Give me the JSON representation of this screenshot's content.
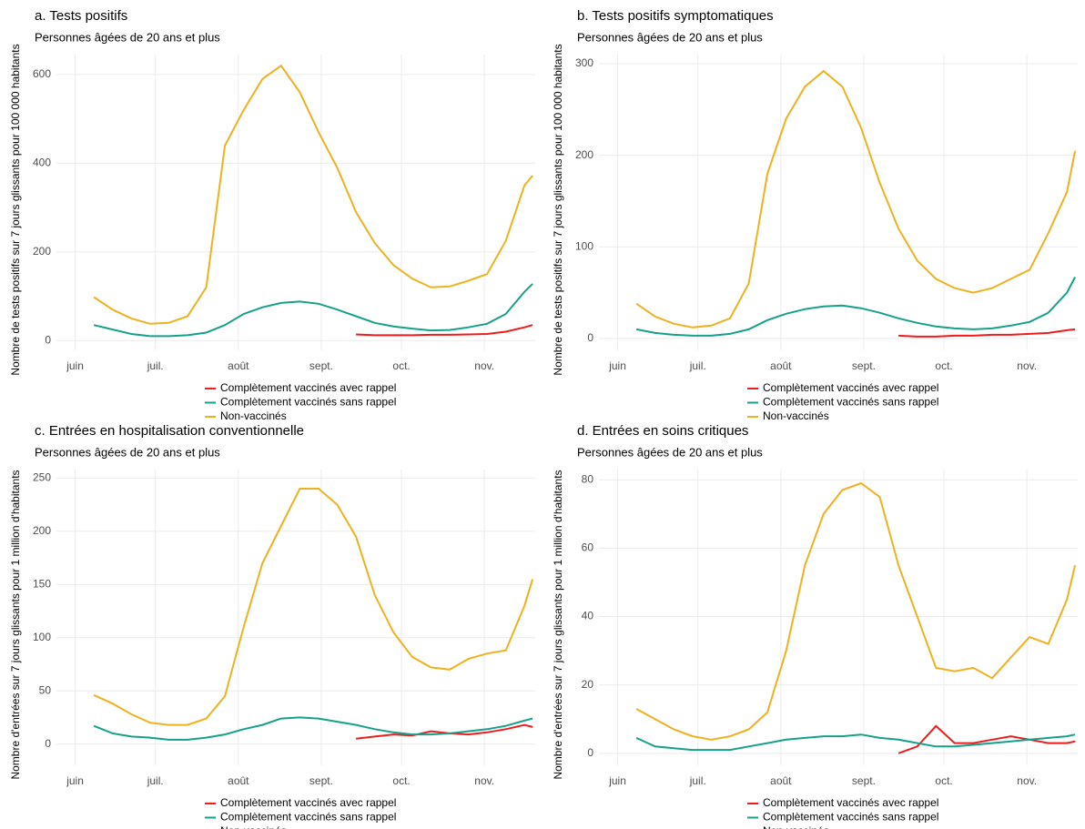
{
  "chart_data": [
    {
      "type": "line",
      "title": "a. Tests positifs",
      "subtitle": "Personnes âgées de 20 ans et plus",
      "y_label": "Nombre de tests positifs sur 7 jours glissants pour 100 000 habitants",
      "x": [
        7,
        14,
        21,
        28,
        35,
        42,
        49,
        56,
        63,
        70,
        77,
        84,
        91,
        98,
        105,
        112,
        119,
        126,
        133,
        140,
        147,
        154,
        161,
        168,
        171
      ],
      "xlim": [
        -7,
        172
      ],
      "xticks": [
        {
          "value": 0,
          "label": "juin"
        },
        {
          "value": 30,
          "label": "juil."
        },
        {
          "value": 61,
          "label": "août"
        },
        {
          "value": 92,
          "label": "sept."
        },
        {
          "value": 122,
          "label": "oct."
        },
        {
          "value": 153,
          "label": "nov."
        }
      ],
      "ylim": [
        -22,
        645
      ],
      "yticks": [
        0,
        200,
        400,
        600
      ],
      "grid": true,
      "legend": "bottom",
      "series": [
        {
          "name": "Complètement vaccinés avec rappel",
          "color": "#ee1c1c",
          "values": [
            null,
            null,
            null,
            null,
            null,
            null,
            null,
            null,
            null,
            null,
            null,
            null,
            null,
            null,
            14,
            12,
            12,
            12,
            13,
            13,
            14,
            15,
            20,
            30,
            35
          ]
        },
        {
          "name": "Complètement vaccinés sans rappel",
          "color": "#16a08b",
          "values": [
            35,
            25,
            15,
            10,
            10,
            12,
            18,
            35,
            60,
            75,
            85,
            88,
            83,
            70,
            55,
            40,
            32,
            27,
            23,
            24,
            30,
            38,
            60,
            110,
            128
          ]
        },
        {
          "name": "Non-vaccinés",
          "color": "#efb11f",
          "values": [
            98,
            70,
            50,
            38,
            40,
            55,
            120,
            440,
            520,
            590,
            620,
            560,
            470,
            390,
            290,
            220,
            170,
            140,
            120,
            122,
            135,
            150,
            225,
            350,
            372
          ]
        }
      ]
    },
    {
      "type": "line",
      "title": "b. Tests positifs symptomatiques",
      "subtitle": "Personnes âgées de 20 ans et plus",
      "y_label": "Nombre de tests positifs sur 7 jours glissants pour 100 000 habitants",
      "x": [
        7,
        14,
        21,
        28,
        35,
        42,
        49,
        56,
        63,
        70,
        77,
        84,
        91,
        98,
        105,
        112,
        119,
        126,
        133,
        140,
        147,
        154,
        161,
        168,
        171
      ],
      "xlim": [
        -7,
        172
      ],
      "xticks": [
        {
          "value": 0,
          "label": "juin"
        },
        {
          "value": 30,
          "label": "juil."
        },
        {
          "value": 61,
          "label": "août"
        },
        {
          "value": 92,
          "label": "sept."
        },
        {
          "value": 122,
          "label": "oct."
        },
        {
          "value": 153,
          "label": "nov."
        }
      ],
      "ylim": [
        -13,
        310
      ],
      "yticks": [
        0,
        100,
        200,
        300
      ],
      "grid": true,
      "legend": "bottom",
      "series": [
        {
          "name": "Complètement vaccinés avec rappel",
          "color": "#ee1c1c",
          "values": [
            null,
            null,
            null,
            null,
            null,
            null,
            null,
            null,
            null,
            null,
            null,
            null,
            null,
            null,
            3,
            2,
            2,
            3,
            3,
            4,
            4,
            5,
            6,
            9,
            10
          ]
        },
        {
          "name": "Complètement vaccinés sans rappel",
          "color": "#16a08b",
          "values": [
            10,
            6,
            4,
            3,
            3,
            5,
            10,
            20,
            27,
            32,
            35,
            36,
            33,
            28,
            22,
            17,
            13,
            11,
            10,
            11,
            14,
            18,
            28,
            50,
            67
          ]
        },
        {
          "name": "Non-vaccinés",
          "color": "#efb11f",
          "values": [
            38,
            24,
            16,
            12,
            14,
            22,
            60,
            180,
            240,
            275,
            292,
            275,
            230,
            170,
            120,
            85,
            65,
            55,
            50,
            55,
            65,
            75,
            115,
            160,
            205
          ]
        }
      ]
    },
    {
      "type": "line",
      "title": "c. Entrées en hospitalisation conventionnelle",
      "subtitle": "Personnes âgées de 20 ans et plus",
      "y_label": "Nombre d'entrées sur 7 jours glissants pour 1 million d'habitants",
      "x": [
        7,
        14,
        21,
        28,
        35,
        42,
        49,
        56,
        63,
        70,
        77,
        84,
        91,
        98,
        105,
        112,
        119,
        126,
        133,
        140,
        147,
        154,
        161,
        168,
        171
      ],
      "xlim": [
        -7,
        172
      ],
      "xticks": [
        {
          "value": 0,
          "label": "juin"
        },
        {
          "value": 30,
          "label": "juil."
        },
        {
          "value": 61,
          "label": "août"
        },
        {
          "value": 92,
          "label": "sept."
        },
        {
          "value": 122,
          "label": "oct."
        },
        {
          "value": 153,
          "label": "nov."
        }
      ],
      "ylim": [
        -20,
        258
      ],
      "yticks": [
        0,
        50,
        100,
        150,
        200,
        250
      ],
      "grid": true,
      "legend": "bottom",
      "series": [
        {
          "name": "Complètement vaccinés avec rappel",
          "color": "#ee1c1c",
          "values": [
            null,
            null,
            null,
            null,
            null,
            null,
            null,
            null,
            null,
            null,
            null,
            null,
            null,
            null,
            5,
            7,
            9,
            8,
            12,
            10,
            9,
            11,
            14,
            18,
            16
          ]
        },
        {
          "name": "Complètement vaccinés sans rappel",
          "color": "#16a08b",
          "values": [
            17,
            10,
            7,
            6,
            4,
            4,
            6,
            9,
            14,
            18,
            24,
            25,
            24,
            21,
            18,
            14,
            11,
            9,
            9,
            10,
            12,
            14,
            17,
            22,
            24
          ]
        },
        {
          "name": "Non-vaccinés",
          "color": "#efb11f",
          "values": [
            46,
            38,
            28,
            20,
            18,
            18,
            24,
            45,
            110,
            170,
            205,
            240,
            240,
            225,
            195,
            140,
            105,
            82,
            72,
            70,
            80,
            85,
            88,
            130,
            155
          ]
        }
      ]
    },
    {
      "type": "line",
      "title": "d. Entrées en soins critiques",
      "subtitle": "Personnes âgées de 20 ans et plus",
      "y_label": "Nombre d'entrées sur 7 jours glissants pour 1 million d'habitants",
      "x": [
        7,
        14,
        21,
        28,
        35,
        42,
        49,
        56,
        63,
        70,
        77,
        84,
        91,
        98,
        105,
        112,
        119,
        126,
        133,
        140,
        147,
        154,
        161,
        168,
        171
      ],
      "xlim": [
        -7,
        172
      ],
      "xticks": [
        {
          "value": 0,
          "label": "juin"
        },
        {
          "value": 30,
          "label": "juil."
        },
        {
          "value": 61,
          "label": "août"
        },
        {
          "value": 92,
          "label": "sept."
        },
        {
          "value": 122,
          "label": "oct."
        },
        {
          "value": 153,
          "label": "nov."
        }
      ],
      "ylim": [
        -3.5,
        83
      ],
      "yticks": [
        0,
        20,
        40,
        60,
        80
      ],
      "grid": true,
      "legend": "bottom",
      "series": [
        {
          "name": "Complètement vaccinés avec rappel",
          "color": "#ee1c1c",
          "values": [
            null,
            null,
            null,
            null,
            null,
            null,
            null,
            null,
            null,
            null,
            null,
            null,
            null,
            null,
            0,
            2,
            8,
            3,
            3,
            4,
            5,
            4,
            3,
            3,
            3.5
          ]
        },
        {
          "name": "Complètement vaccinés sans rappel",
          "color": "#16a08b",
          "values": [
            4.5,
            2,
            1.5,
            1,
            1,
            1,
            2,
            3,
            4,
            4.5,
            5,
            5,
            5.5,
            4.5,
            4,
            3,
            2,
            2,
            2.5,
            3,
            3.5,
            4,
            4.5,
            5,
            5.5
          ]
        },
        {
          "name": "Non-vaccinés",
          "color": "#efb11f",
          "values": [
            13,
            10,
            7,
            5,
            4,
            5,
            7,
            12,
            30,
            55,
            70,
            77,
            79,
            75,
            55,
            40,
            25,
            24,
            25,
            22,
            28,
            34,
            32,
            45,
            55
          ]
        }
      ]
    }
  ]
}
